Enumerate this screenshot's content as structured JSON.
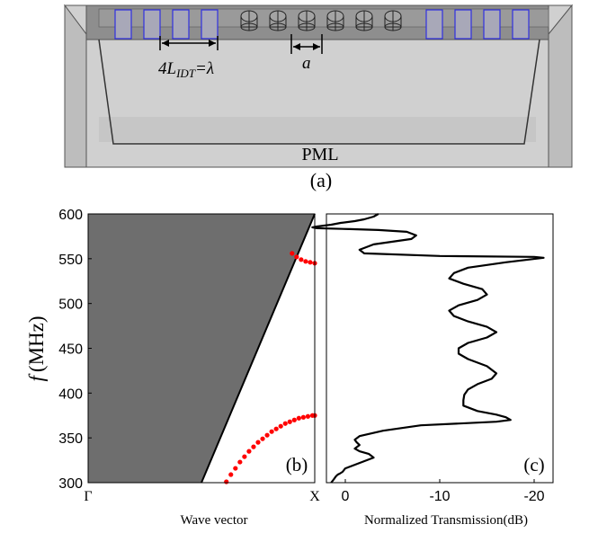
{
  "panel_a": {
    "length_label_main": "4L",
    "length_label_sub": "IDT",
    "length_label_tail": "=λ",
    "period_label": "a",
    "pml_label": "PML",
    "panel_label": "(a)",
    "left_idt_count": 4,
    "pillar_count": 6,
    "right_idt_count": 4,
    "colors": {
      "idt": "#3030e0",
      "substrate": "#cfcfcf",
      "top_layer": "#8a8a8a"
    }
  },
  "chart_data": [
    {
      "type": "area",
      "panel_label": "(b)",
      "title": "",
      "xlabel": "Wave vector",
      "ylabel_symbol": "f",
      "ylabel_unit": "(MHz)",
      "x_ticks": [
        "Γ",
        "X"
      ],
      "y_ticks": [
        300,
        350,
        400,
        450,
        500,
        550,
        600
      ],
      "ylim": [
        300,
        600
      ],
      "xlim": [
        0,
        1
      ],
      "sound_cone": {
        "color": "#6e6e6e",
        "x": [
          0.0,
          0.5,
          1.0
        ],
        "y": [
          300,
          300,
          600
        ]
      },
      "series": [
        {
          "color": "#ff0000",
          "x": [
            0.61,
            0.63,
            0.65,
            0.67,
            0.69,
            0.71,
            0.73,
            0.75,
            0.77,
            0.79,
            0.81,
            0.83,
            0.85,
            0.87,
            0.89,
            0.91,
            0.93,
            0.95,
            0.97,
            0.99,
            1.0
          ],
          "y": [
            301,
            309,
            316,
            323,
            329,
            335,
            340,
            345,
            349,
            353,
            357,
            360,
            363,
            366,
            368,
            370,
            372,
            373,
            374,
            375,
            375
          ]
        },
        {
          "color": "#ff0000",
          "x": [
            0.9,
            0.92,
            0.94,
            0.96,
            0.98,
            1.0
          ],
          "y": [
            556,
            552,
            549,
            547,
            546,
            545
          ]
        }
      ]
    },
    {
      "type": "line",
      "panel_label": "(c)",
      "title": "",
      "xlabel": "Normalized Transmission(dB)",
      "x_ticks": [
        0,
        -10,
        -20
      ],
      "xlim": [
        2,
        -22
      ],
      "ylim": [
        300,
        600
      ],
      "color": "#000000",
      "x": [
        1.5,
        1.2,
        1.0,
        0.8,
        0.6,
        0.3,
        0.0,
        -1.0,
        -2.0,
        -3.0,
        -2.5,
        -1.5,
        -1.0,
        -1.5,
        -1.2,
        -1.0,
        -1.5,
        -4.0,
        -8.0,
        -16.0,
        -17.5,
        -17.0,
        -16.0,
        -14.0,
        -12.5,
        -12.5,
        -12.6,
        -13.0,
        -14.0,
        -15.5,
        -16.0,
        -15.0,
        -13.0,
        -12.0,
        -12.0,
        -13.0,
        -15.0,
        -16.0,
        -15.0,
        -13.0,
        -11.5,
        -11.0,
        -12.0,
        -14.0,
        -15.0,
        -14.5,
        -12.5,
        -11.0,
        -11.5,
        -13.0,
        -17.0,
        -21.0,
        -20.0,
        -10.0,
        -2.0,
        -1.5,
        -3.0,
        -7.0,
        -7.5,
        -6.5,
        -3.5,
        -0.5,
        3.0,
        3.5,
        3.0,
        1.5,
        0.5,
        -1.0,
        -2.0,
        -3.0,
        -3.5
      ],
      "y": [
        300,
        304,
        307,
        309,
        310,
        312,
        316,
        320,
        324,
        328,
        332,
        335,
        338,
        342,
        345,
        348,
        352,
        358,
        364,
        368,
        370,
        373,
        376,
        380,
        386,
        392,
        398,
        404,
        410,
        416,
        422,
        430,
        438,
        444,
        450,
        456,
        462,
        468,
        474,
        480,
        486,
        492,
        498,
        504,
        510,
        516,
        522,
        528,
        534,
        540,
        546,
        551,
        552,
        553,
        556,
        560,
        566,
        572,
        576,
        580,
        582,
        583,
        584,
        585,
        586,
        588,
        590,
        592,
        594,
        597,
        600
      ]
    }
  ]
}
